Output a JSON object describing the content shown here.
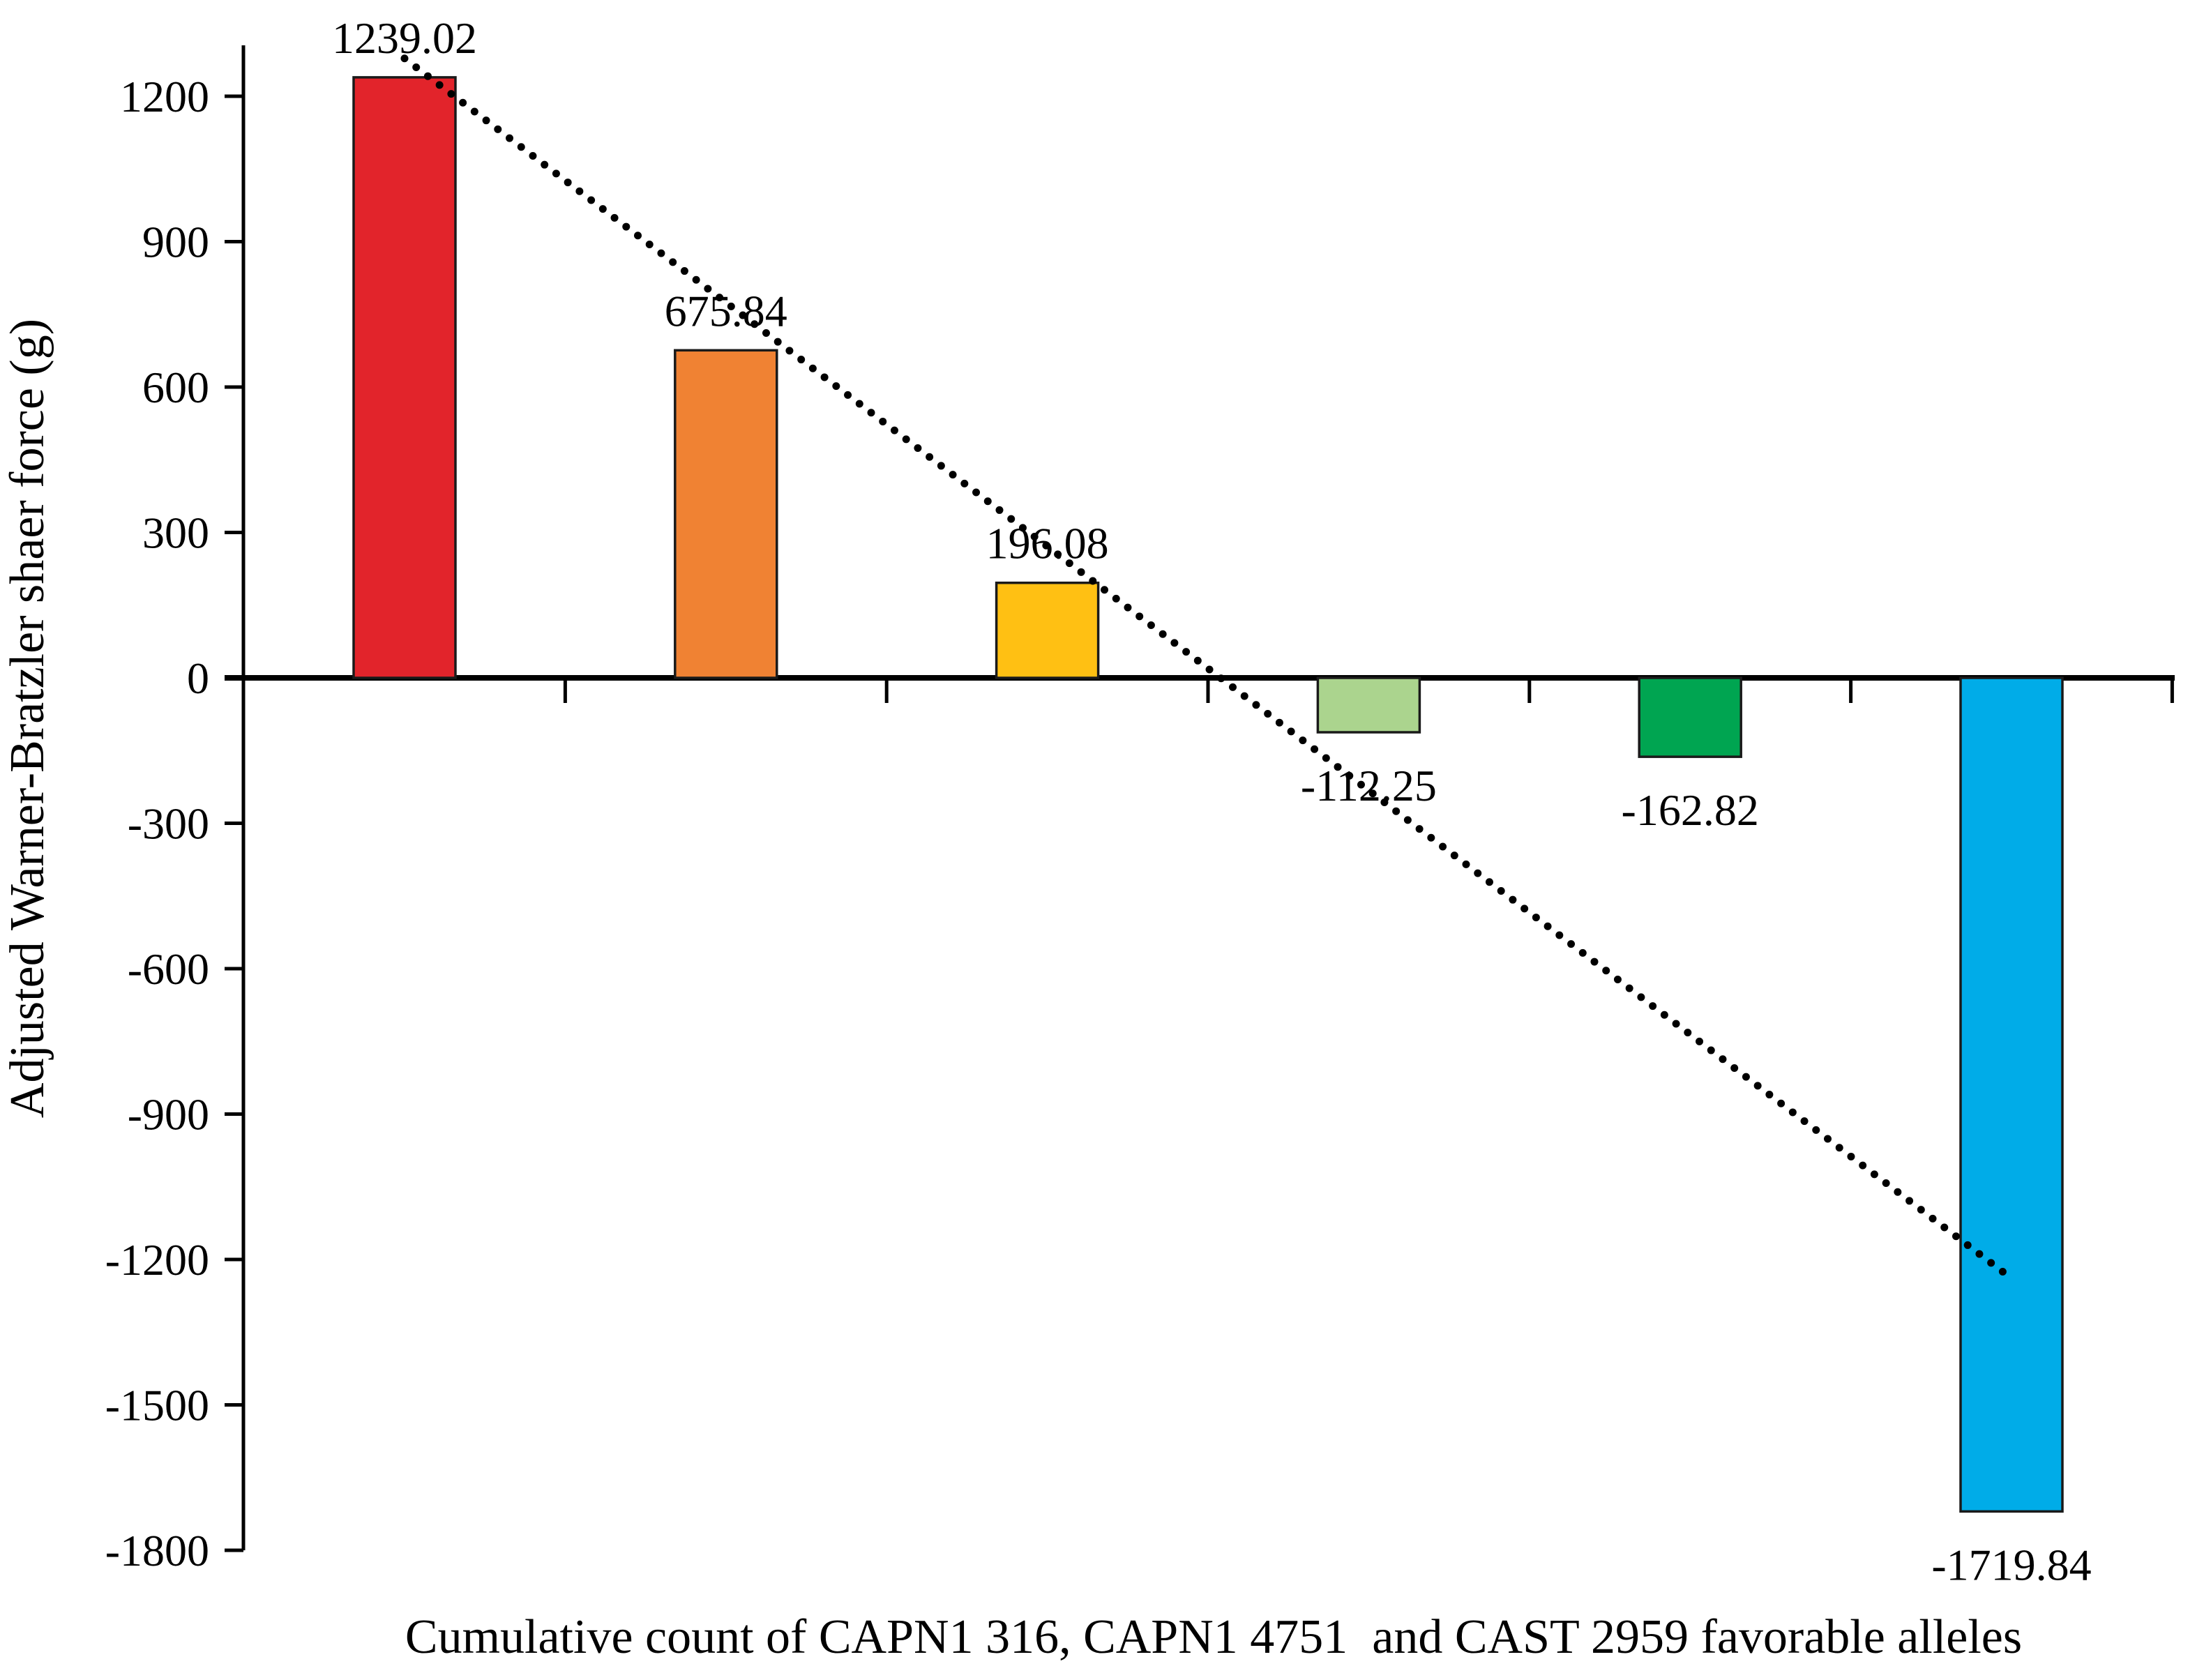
{
  "chart_data": {
    "type": "bar",
    "title": "",
    "xlabel": "Cumulative count of CAPN1 316, CAPN1 4751  and CAST 2959 favorable alleles",
    "ylabel": "Adjusted Warner-Bratzler shaer force (g)",
    "values": [
      1239.02,
      675.84,
      196.08,
      -112.25,
      -162.82,
      -1719.84
    ],
    "bar_labels": [
      "1239.02",
      "675.84",
      "196.08",
      "-112.25",
      "-162.82",
      "-1719.84"
    ],
    "bar_colors": [
      "#e2242b",
      "#f08233",
      "#ffc013",
      "#abd48e",
      "#00a551",
      "#00ace8"
    ],
    "bar_border_color": "#1a1a1a",
    "y_ticks": [
      1200,
      900,
      600,
      300,
      0,
      -300,
      -600,
      -900,
      -1200,
      -1500,
      -1800
    ],
    "ylim": [
      -1800,
      1280
    ],
    "grid": false,
    "legend": "none",
    "axis_color": "#000000",
    "trendline": {
      "style": "dotted",
      "color": "#000000",
      "start_category_index": 0,
      "start_value": 1278,
      "end_category_index": 5,
      "end_value": -1239
    }
  }
}
